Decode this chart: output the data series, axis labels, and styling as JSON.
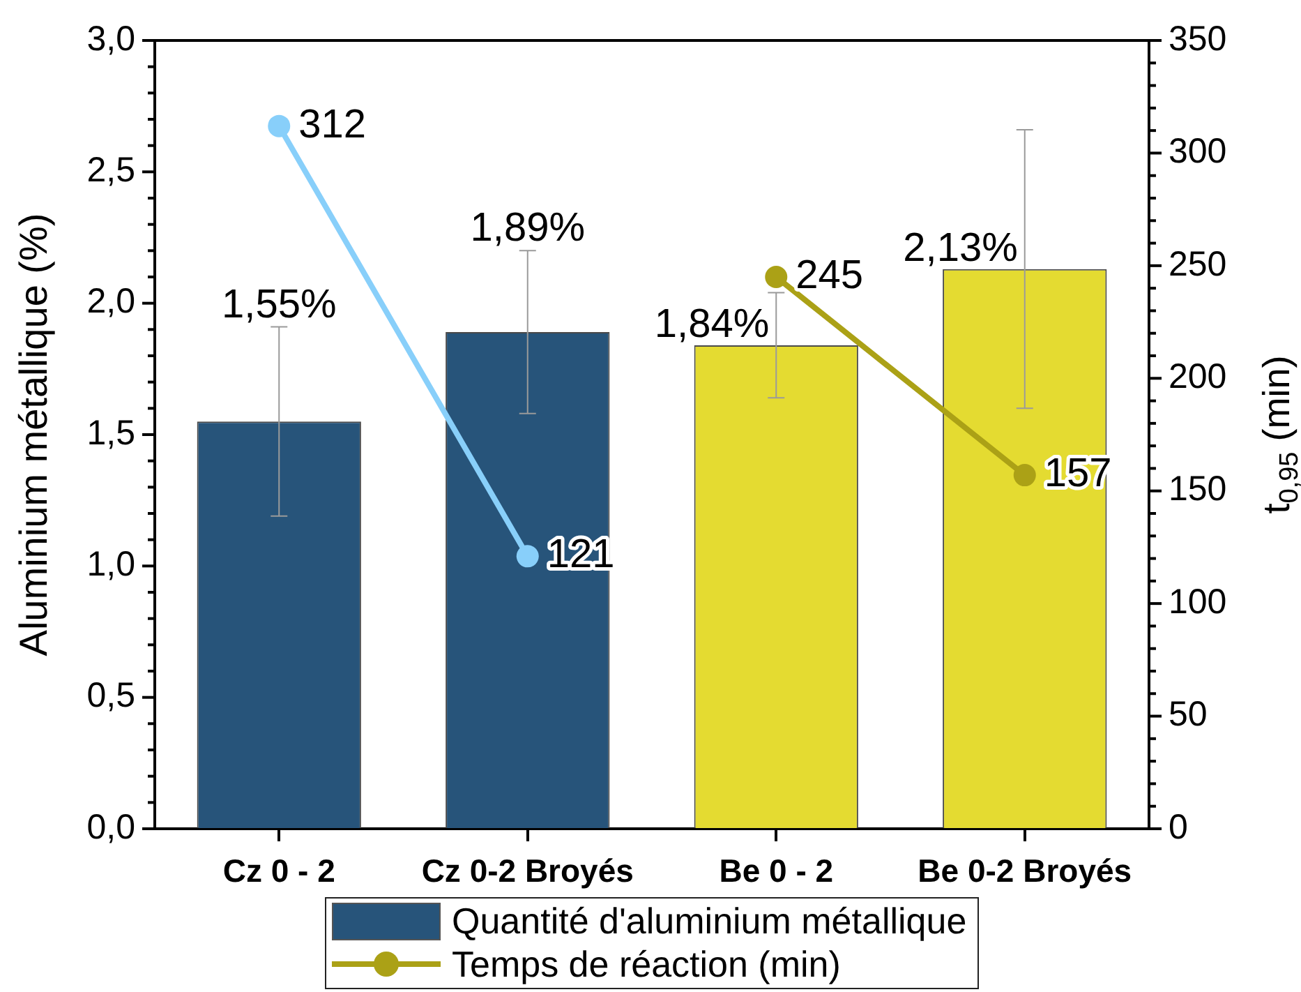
{
  "chart_data": {
    "type": "bar",
    "categories": [
      "Cz 0 - 2",
      "Cz 0-2 Broyés",
      "Be 0 - 2",
      "Be 0-2 Broyés"
    ],
    "series": [
      {
        "name": "Quantité d'aluminium métallique",
        "colors": [
          "#27547a",
          "#27547a",
          "#e4db31",
          "#e4db31"
        ],
        "values": [
          1.55,
          1.89,
          1.84,
          2.13
        ],
        "errors": [
          0.36,
          0.31,
          0.2,
          0.53
        ],
        "value_labels": [
          "1,55%",
          "1,89%",
          "1,84%",
          "2,13%"
        ]
      },
      {
        "type": "line",
        "axis": "y2",
        "color": "#88cffa",
        "values": [
          312,
          121,
          null,
          null
        ],
        "value_labels": [
          "312",
          "121",
          null,
          null
        ]
      },
      {
        "name": "Temps de réaction (min)",
        "type": "line",
        "axis": "y2",
        "color": "#aba116",
        "values": [
          null,
          null,
          245,
          157
        ],
        "value_labels": [
          null,
          null,
          "245",
          "157"
        ]
      }
    ],
    "ylabel": "Aluminium métallique (%)",
    "y2label": "t$_{0,95}$ (min)",
    "ylim": [
      0,
      3
    ],
    "yticks": [
      {
        "value": 0,
        "label": "0,0"
      },
      {
        "value": 0.1,
        "label": null
      },
      {
        "value": 0.2,
        "label": null
      },
      {
        "value": 0.3,
        "label": null
      },
      {
        "value": 0.4,
        "label": null
      },
      {
        "value": 0.5,
        "label": "0,5"
      },
      {
        "value": 0.6,
        "label": null
      },
      {
        "value": 0.7,
        "label": null
      },
      {
        "value": 0.8,
        "label": null
      },
      {
        "value": 0.9,
        "label": null
      },
      {
        "value": 1,
        "label": "1,0"
      },
      {
        "value": 1.1,
        "label": null
      },
      {
        "value": 1.2,
        "label": null
      },
      {
        "value": 1.3,
        "label": null
      },
      {
        "value": 1.4,
        "label": null
      },
      {
        "value": 1.5,
        "label": "1,5"
      },
      {
        "value": 1.6,
        "label": null
      },
      {
        "value": 1.7,
        "label": null
      },
      {
        "value": 1.8,
        "label": null
      },
      {
        "value": 1.9,
        "label": null
      },
      {
        "value": 2,
        "label": "2,0"
      },
      {
        "value": 2.1,
        "label": null
      },
      {
        "value": 2.2,
        "label": null
      },
      {
        "value": 2.3,
        "label": null
      },
      {
        "value": 2.4,
        "label": null
      },
      {
        "value": 2.5,
        "label": "2,5"
      },
      {
        "value": 2.6,
        "label": null
      },
      {
        "value": 2.7,
        "label": null
      },
      {
        "value": 2.8,
        "label": null
      },
      {
        "value": 2.9,
        "label": null
      },
      {
        "value": 3,
        "label": "3,0"
      }
    ],
    "y2lim": [
      0,
      350
    ],
    "y2ticks": [
      0,
      {
        "value": 10,
        "label": null
      },
      {
        "value": 20,
        "label": null
      },
      {
        "value": 30,
        "label": null
      },
      {
        "value": 40,
        "label": null
      },
      50,
      {
        "value": 60,
        "label": null
      },
      {
        "value": 70,
        "label": null
      },
      {
        "value": 80,
        "label": null
      },
      {
        "value": 90,
        "label": null
      },
      100,
      {
        "value": 110,
        "label": null
      },
      {
        "value": 120,
        "label": null
      },
      {
        "value": 130,
        "label": null
      },
      {
        "value": 140,
        "label": null
      },
      150,
      {
        "value": 160,
        "label": null
      },
      {
        "value": 170,
        "label": null
      },
      {
        "value": 180,
        "label": null
      },
      {
        "value": 190,
        "label": null
      },
      200,
      {
        "value": 210,
        "label": null
      },
      {
        "value": 220,
        "label": null
      },
      {
        "value": 230,
        "label": null
      },
      {
        "value": 240,
        "label": null
      },
      250,
      {
        "value": 260,
        "label": null
      },
      {
        "value": 270,
        "label": null
      },
      {
        "value": 280,
        "label": null
      },
      {
        "value": 290,
        "label": null
      },
      300,
      {
        "value": 310,
        "label": null
      },
      {
        "value": 320,
        "label": null
      },
      {
        "value": 330,
        "label": null
      },
      {
        "value": 340,
        "label": null
      },
      350
    ],
    "legend": "bottom",
    "marker": "circle"
  }
}
